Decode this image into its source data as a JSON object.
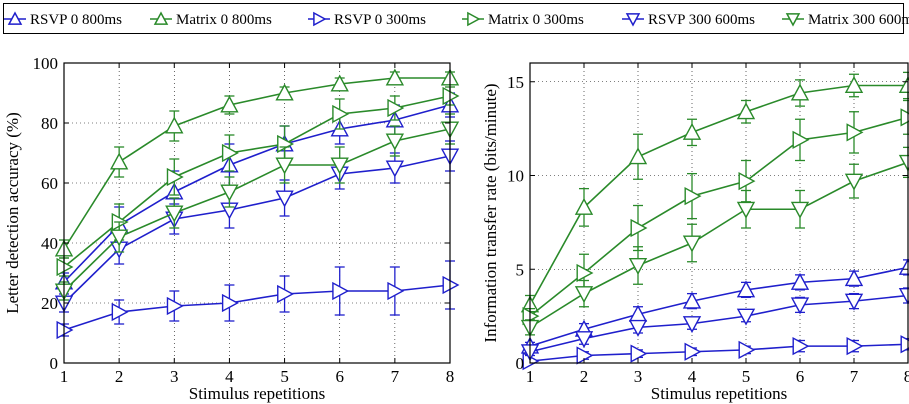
{
  "colors": {
    "rsvp": "#1f1fcc",
    "matrix": "#2a8a2a"
  },
  "legend": {
    "entries": [
      {
        "label": "RSVP 0  800ms",
        "series_key": "rsvp_0_800",
        "marker": "triangle-up",
        "color": "#1f1fcc"
      },
      {
        "label": "Matrix 0  800ms",
        "series_key": "matrix_0_800",
        "marker": "triangle-up",
        "color": "#2a8a2a"
      },
      {
        "label": "RSVP 0  300ms",
        "series_key": "rsvp_0_300",
        "marker": "triangle-right",
        "color": "#1f1fcc"
      },
      {
        "label": "Matrix 0  300ms",
        "series_key": "matrix_0_300",
        "marker": "triangle-right",
        "color": "#2a8a2a"
      },
      {
        "label": "RSVP 300  600ms",
        "series_key": "rsvp_300_600",
        "marker": "triangle-down",
        "color": "#1f1fcc"
      },
      {
        "label": "Matrix 300  600ms",
        "series_key": "matrix_300_600",
        "marker": "triangle-down",
        "color": "#2a8a2a"
      }
    ]
  },
  "chart_data": [
    {
      "type": "line",
      "xlabel": "Stimulus repetitions",
      "ylabel": "Letter detection accuracy (%)",
      "x": [
        1,
        2,
        3,
        4,
        5,
        6,
        7,
        8
      ],
      "xlim": [
        1,
        8
      ],
      "ylim": [
        0,
        100
      ],
      "xticks": [
        "1",
        "2",
        "3",
        "4",
        "5",
        "6",
        "7",
        "8"
      ],
      "yticks": [
        "0",
        "20",
        "40",
        "60",
        "80",
        "100"
      ],
      "ytick_values": [
        0,
        20,
        40,
        60,
        80,
        100
      ],
      "grid": "dotted",
      "series": [
        {
          "name": "RSVP 0  800ms",
          "marker": "triangle-up",
          "color": "#1f1fcc",
          "values": [
            27,
            46,
            57,
            66,
            73,
            78,
            81,
            86
          ],
          "err": [
            3,
            6,
            7,
            7,
            6,
            5,
            5,
            4
          ]
        },
        {
          "name": "Matrix 0  800ms",
          "marker": "triangle-up",
          "color": "#2a8a2a",
          "values": [
            38,
            67,
            79,
            86,
            90,
            93,
            95,
            95
          ],
          "err": [
            3,
            5,
            5,
            3,
            2,
            2,
            2,
            2
          ]
        },
        {
          "name": "RSVP 0  300ms",
          "marker": "triangle-right",
          "color": "#1f1fcc",
          "values": [
            11,
            17,
            19,
            20,
            23,
            24,
            24,
            26
          ],
          "err": [
            2,
            4,
            5,
            6,
            6,
            8,
            8,
            8
          ]
        },
        {
          "name": "Matrix 0  300ms",
          "marker": "triangle-right",
          "color": "#2a8a2a",
          "values": [
            32,
            47,
            62,
            70,
            73,
            83,
            85,
            89
          ],
          "err": [
            3,
            6,
            6,
            6,
            6,
            5,
            4,
            3
          ]
        },
        {
          "name": "RSVP 300  600ms",
          "marker": "triangle-down",
          "color": "#1f1fcc",
          "values": [
            20,
            38,
            48,
            51,
            55,
            63,
            65,
            69
          ],
          "err": [
            3,
            5,
            5,
            6,
            6,
            5,
            5,
            5
          ]
        },
        {
          "name": "Matrix 300  600ms",
          "marker": "triangle-down",
          "color": "#2a8a2a",
          "values": [
            24,
            42,
            50,
            57,
            66,
            66,
            74,
            78
          ],
          "err": [
            3,
            5,
            5,
            5,
            6,
            6,
            5,
            5
          ]
        }
      ]
    },
    {
      "type": "line",
      "xlabel": "Stimulus repetitions",
      "ylabel": "Information transfer rate (bits/minute)",
      "x": [
        1,
        2,
        3,
        4,
        5,
        6,
        7,
        8
      ],
      "xlim": [
        1,
        8
      ],
      "ylim": [
        0,
        16
      ],
      "xticks": [
        "1",
        "2",
        "3",
        "4",
        "5",
        "6",
        "7",
        "8"
      ],
      "yticks": [
        "0",
        "5",
        "10",
        "15"
      ],
      "ytick_values": [
        0,
        5,
        10,
        15
      ],
      "grid": "dotted",
      "series": [
        {
          "name": "RSVP 0  800ms",
          "marker": "triangle-up",
          "color": "#1f1fcc",
          "values": [
            0.9,
            1.8,
            2.6,
            3.3,
            3.9,
            4.3,
            4.5,
            5.1
          ],
          "err": [
            0.2,
            0.3,
            0.4,
            0.4,
            0.4,
            0.4,
            0.4,
            0.4
          ]
        },
        {
          "name": "Matrix 0  800ms",
          "marker": "triangle-up",
          "color": "#2a8a2a",
          "values": [
            3.1,
            8.3,
            11.0,
            12.3,
            13.4,
            14.4,
            14.8,
            14.8
          ],
          "err": [
            0.5,
            1.0,
            1.2,
            0.7,
            0.6,
            0.7,
            0.6,
            0.7
          ]
        },
        {
          "name": "RSVP 0  300ms",
          "marker": "triangle-right",
          "color": "#1f1fcc",
          "values": [
            0.1,
            0.4,
            0.5,
            0.6,
            0.7,
            0.9,
            0.9,
            1.0
          ],
          "err": [
            0.1,
            0.2,
            0.2,
            0.2,
            0.2,
            0.3,
            0.3,
            0.3
          ]
        },
        {
          "name": "Matrix 0  300ms",
          "marker": "triangle-right",
          "color": "#2a8a2a",
          "values": [
            2.5,
            4.8,
            7.2,
            8.9,
            9.7,
            11.9,
            12.3,
            13.1
          ],
          "err": [
            0.4,
            1.0,
            1.2,
            1.2,
            1.1,
            1.1,
            1.1,
            0.9
          ]
        },
        {
          "name": "RSVP 300  600ms",
          "marker": "triangle-down",
          "color": "#1f1fcc",
          "values": [
            0.6,
            1.3,
            1.9,
            2.1,
            2.5,
            3.1,
            3.3,
            3.6
          ],
          "err": [
            0.2,
            0.3,
            0.3,
            0.3,
            0.3,
            0.4,
            0.4,
            0.4
          ]
        },
        {
          "name": "Matrix 300  600ms",
          "marker": "triangle-down",
          "color": "#2a8a2a",
          "values": [
            1.9,
            3.7,
            5.2,
            6.4,
            8.2,
            8.2,
            9.7,
            10.7
          ],
          "err": [
            0.4,
            0.7,
            1.0,
            1.0,
            1.0,
            1.0,
            0.9,
            0.8
          ]
        }
      ]
    }
  ]
}
